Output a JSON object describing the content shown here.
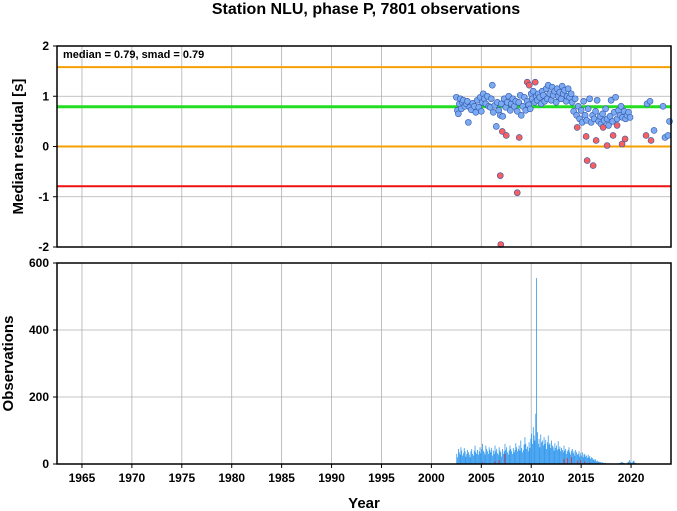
{
  "chart_data": [
    {
      "type": "scatter",
      "title": "Station NLU, phase P, 7801 observations",
      "xlabel": "",
      "ylabel": "Median residual [s]",
      "xlim": [
        1962.5,
        2024.0
      ],
      "ylim": [
        -2,
        2
      ],
      "yticks": [
        -2,
        -1,
        0,
        1,
        2
      ],
      "xticks": [
        1965,
        1970,
        1975,
        1980,
        1985,
        1990,
        1995,
        2000,
        2005,
        2010,
        2015,
        2020
      ],
      "grid": true,
      "annotation": "median = 0.79, smad = 0.79",
      "reference_lines": [
        {
          "value": 1.58,
          "color": "#f5a000",
          "width": 2
        },
        {
          "value": 0.79,
          "color": "#22dd22",
          "width": 3
        },
        {
          "value": 0.0,
          "color": "#f5a000",
          "width": 2
        },
        {
          "value": -0.79,
          "color": "#ee1111",
          "width": 2
        }
      ],
      "colors": {
        "normal": "#7aaaf2",
        "outlier": "#f86060"
      },
      "series": [
        {
          "key": "normal",
          "points": [
            [
              2002.5,
              0.98
            ],
            [
              2002.6,
              0.72
            ],
            [
              2002.7,
              0.65
            ],
            [
              2002.8,
              0.85
            ],
            [
              2002.9,
              0.95
            ],
            [
              2003.0,
              0.75
            ],
            [
              2003.1,
              0.88
            ],
            [
              2003.2,
              0.92
            ],
            [
              2003.35,
              0.8
            ],
            [
              2003.5,
              0.85
            ],
            [
              2003.6,
              0.9
            ],
            [
              2003.7,
              0.48
            ],
            [
              2003.85,
              0.78
            ],
            [
              2004.0,
              0.73
            ],
            [
              2004.15,
              0.86
            ],
            [
              2004.3,
              0.8
            ],
            [
              2004.45,
              0.68
            ],
            [
              2004.6,
              0.92
            ],
            [
              2004.75,
              0.78
            ],
            [
              2004.9,
              0.98
            ],
            [
              2005.0,
              0.7
            ],
            [
              2005.1,
              0.88
            ],
            [
              2005.2,
              1.05
            ],
            [
              2005.3,
              0.95
            ],
            [
              2005.45,
              0.85
            ],
            [
              2005.6,
              1.0
            ],
            [
              2005.75,
              0.8
            ],
            [
              2005.9,
              0.78
            ],
            [
              2006.0,
              0.95
            ],
            [
              2006.1,
              1.22
            ],
            [
              2006.2,
              0.68
            ],
            [
              2006.35,
              0.82
            ],
            [
              2006.5,
              0.4
            ],
            [
              2006.6,
              0.88
            ],
            [
              2006.75,
              0.72
            ],
            [
              2006.9,
              0.62
            ],
            [
              2007.0,
              0.85
            ],
            [
              2007.15,
              0.6
            ],
            [
              2007.3,
              0.95
            ],
            [
              2007.45,
              0.78
            ],
            [
              2007.6,
              0.88
            ],
            [
              2007.75,
              1.0
            ],
            [
              2007.9,
              0.72
            ],
            [
              2008.0,
              0.85
            ],
            [
              2008.15,
              0.95
            ],
            [
              2008.3,
              0.8
            ],
            [
              2008.45,
              0.9
            ],
            [
              2008.6,
              0.7
            ],
            [
              2008.75,
              0.88
            ],
            [
              2008.9,
              1.02
            ],
            [
              2009.0,
              0.62
            ],
            [
              2009.15,
              0.8
            ],
            [
              2009.3,
              0.98
            ],
            [
              2009.45,
              0.72
            ],
            [
              2009.6,
              0.9
            ],
            [
              2009.75,
              0.83
            ],
            [
              2009.9,
              0.75
            ],
            [
              2010.0,
              1.05
            ],
            [
              2010.1,
              0.95
            ],
            [
              2010.2,
              1.1
            ],
            [
              2010.35,
              0.88
            ],
            [
              2010.5,
              1.0
            ],
            [
              2010.6,
              0.92
            ],
            [
              2010.7,
              1.05
            ],
            [
              2010.85,
              0.98
            ],
            [
              2011.0,
              0.85
            ],
            [
              2011.1,
              1.1
            ],
            [
              2011.2,
              1.02
            ],
            [
              2011.35,
              0.9
            ],
            [
              2011.5,
              1.15
            ],
            [
              2011.6,
              0.95
            ],
            [
              2011.7,
              1.22
            ],
            [
              2011.85,
              1.05
            ],
            [
              2012.0,
              0.92
            ],
            [
              2012.1,
              1.18
            ],
            [
              2012.2,
              1.02
            ],
            [
              2012.35,
              1.1
            ],
            [
              2012.5,
              0.88
            ],
            [
              2012.6,
              1.15
            ],
            [
              2012.7,
              1.0
            ],
            [
              2012.85,
              1.08
            ],
            [
              2013.0,
              0.95
            ],
            [
              2013.1,
              1.2
            ],
            [
              2013.2,
              1.05
            ],
            [
              2013.35,
              1.12
            ],
            [
              2013.5,
              0.9
            ],
            [
              2013.6,
              1.0
            ],
            [
              2013.7,
              1.15
            ],
            [
              2013.85,
              0.98
            ],
            [
              2014.0,
              1.05
            ],
            [
              2014.1,
              0.88
            ],
            [
              2014.25,
              0.7
            ],
            [
              2014.4,
              0.95
            ],
            [
              2014.55,
              0.62
            ],
            [
              2014.7,
              0.8
            ],
            [
              2014.85,
              0.55
            ],
            [
              2015.0,
              0.72
            ],
            [
              2015.1,
              0.48
            ],
            [
              2015.25,
              0.9
            ],
            [
              2015.4,
              0.62
            ],
            [
              2015.55,
              0.52
            ],
            [
              2015.7,
              0.75
            ],
            [
              2015.85,
              0.95
            ],
            [
              2016.0,
              0.48
            ],
            [
              2016.15,
              0.62
            ],
            [
              2016.3,
              0.55
            ],
            [
              2016.45,
              0.7
            ],
            [
              2016.6,
              0.92
            ],
            [
              2016.75,
              0.5
            ],
            [
              2016.9,
              0.6
            ],
            [
              2017.0,
              0.45
            ],
            [
              2017.15,
              0.65
            ],
            [
              2017.3,
              0.52
            ],
            [
              2017.45,
              0.75
            ],
            [
              2017.6,
              0.55
            ],
            [
              2017.75,
              0.42
            ],
            [
              2017.9,
              0.6
            ],
            [
              2018.0,
              0.92
            ],
            [
              2018.15,
              0.5
            ],
            [
              2018.3,
              0.68
            ],
            [
              2018.45,
              0.98
            ],
            [
              2018.6,
              0.55
            ],
            [
              2018.75,
              0.72
            ],
            [
              2018.9,
              0.62
            ],
            [
              2019.0,
              0.8
            ],
            [
              2019.15,
              0.58
            ],
            [
              2019.3,
              0.7
            ],
            [
              2019.45,
              0.55
            ],
            [
              2019.6,
              0.62
            ],
            [
              2019.75,
              0.68
            ],
            [
              2019.9,
              0.58
            ],
            [
              2021.6,
              0.85
            ],
            [
              2021.9,
              0.9
            ],
            [
              2022.3,
              0.32
            ],
            [
              2023.2,
              0.8
            ],
            [
              2023.4,
              0.18
            ],
            [
              2023.7,
              0.22
            ],
            [
              2023.85,
              0.5
            ]
          ]
        },
        {
          "key": "outlier",
          "points": [
            [
              2006.9,
              -0.58
            ],
            [
              2006.95,
              -1.95
            ],
            [
              2007.1,
              0.3
            ],
            [
              2007.5,
              0.22
            ],
            [
              2008.6,
              -0.92
            ],
            [
              2008.8,
              0.18
            ],
            [
              2009.6,
              1.28
            ],
            [
              2009.8,
              1.22
            ],
            [
              2010.4,
              1.28
            ],
            [
              2014.6,
              0.38
            ],
            [
              2015.5,
              0.2
            ],
            [
              2015.6,
              -0.28
            ],
            [
              2016.2,
              -0.38
            ],
            [
              2016.5,
              0.12
            ],
            [
              2017.2,
              0.38
            ],
            [
              2017.6,
              0.02
            ],
            [
              2018.2,
              0.22
            ],
            [
              2018.6,
              0.42
            ],
            [
              2019.1,
              0.05
            ],
            [
              2019.4,
              0.15
            ],
            [
              2021.5,
              0.22
            ],
            [
              2022.0,
              0.12
            ]
          ]
        }
      ]
    },
    {
      "type": "bar",
      "xlabel": "Year",
      "ylabel": "Observations",
      "xlim": [
        1962.5,
        2024.0
      ],
      "ylim": [
        0,
        600
      ],
      "yticks": [
        0,
        200,
        400,
        600
      ],
      "xticks": [
        1965,
        1970,
        1975,
        1980,
        1985,
        1990,
        1995,
        2000,
        2005,
        2010,
        2015,
        2020
      ],
      "grid": true,
      "colors": {
        "total": "#3399ee",
        "outlier": "#dd2222"
      },
      "bin_width_years": 0.0833,
      "bins_start": 2002.5,
      "counts": [
        30,
        20,
        45,
        35,
        28,
        50,
        40,
        25,
        32,
        48,
        38,
        22,
        30,
        42,
        35,
        28,
        20,
        38,
        45,
        30,
        25,
        40,
        55,
        35,
        30,
        42,
        28,
        38,
        50,
        32,
        45,
        60,
        40,
        35,
        28,
        55,
        45,
        38,
        30,
        50,
        42,
        35,
        48,
        25,
        40,
        30,
        55,
        38,
        45,
        32,
        28,
        50,
        40,
        35,
        22,
        45,
        30,
        38,
        60,
        42,
        50,
        35,
        28,
        40,
        55,
        45,
        38,
        30,
        48,
        35,
        42,
        62,
        50,
        38,
        45,
        55,
        40,
        70,
        48,
        35,
        42,
        58,
        80,
        60,
        45,
        52,
        38,
        65,
        48,
        75,
        90,
        60,
        110,
        85,
        70,
        150,
        555,
        95,
        60,
        75,
        50,
        88,
        65,
        70,
        55,
        80,
        60,
        72,
        45,
        65,
        85,
        58,
        62,
        48,
        70,
        55,
        50,
        40,
        62,
        48,
        55,
        42,
        68,
        45,
        52,
        38,
        48,
        42,
        35,
        55,
        40,
        45,
        30,
        38,
        42,
        50,
        35,
        28,
        40,
        45,
        32,
        38,
        25,
        42,
        35,
        28,
        30,
        38,
        22,
        32,
        25,
        35,
        20,
        28,
        30,
        22,
        25,
        18,
        28,
        20,
        24,
        15,
        20,
        18,
        12,
        15,
        10,
        14,
        8,
        10,
        6,
        8,
        5,
        6,
        4,
        5,
        3,
        4,
        2,
        3,
        2,
        1,
        2,
        1,
        2,
        1,
        2,
        1,
        1,
        1,
        1,
        1,
        1,
        2,
        1,
        2,
        3,
        4,
        6,
        5,
        4,
        3,
        2,
        1,
        2,
        4,
        5,
        8,
        12,
        6,
        3,
        4,
        8,
        10,
        5,
        3,
        2,
        1
      ],
      "outlier_counts": [
        0,
        0,
        0,
        0,
        0,
        0,
        0,
        0,
        0,
        0,
        0,
        0,
        0,
        0,
        0,
        0,
        0,
        0,
        0,
        0,
        0,
        0,
        0,
        0,
        0,
        0,
        0,
        0,
        0,
        0,
        0,
        5,
        0,
        0,
        0,
        0,
        0,
        0,
        0,
        0,
        0,
        0,
        0,
        0,
        0,
        0,
        8,
        0,
        0,
        0,
        0,
        12,
        0,
        0,
        0,
        0,
        0,
        0,
        30,
        0,
        0,
        0,
        0,
        0,
        0,
        0,
        0,
        0,
        0,
        0,
        0,
        0,
        0,
        0,
        0,
        0,
        0,
        0,
        0,
        0,
        0,
        0,
        0,
        0,
        0,
        0,
        0,
        0,
        0,
        0,
        0,
        0,
        0,
        0,
        0,
        0,
        0,
        0,
        0,
        0,
        0,
        0,
        0,
        0,
        0,
        0,
        0,
        0,
        0,
        0,
        0,
        0,
        0,
        0,
        0,
        0,
        0,
        0,
        0,
        0,
        0,
        0,
        0,
        0,
        0,
        0,
        0,
        0,
        0,
        15,
        0,
        0,
        0,
        18,
        0,
        0,
        0,
        0,
        20,
        0,
        0,
        0,
        0,
        0,
        0,
        10,
        0,
        0,
        0,
        12,
        0,
        0,
        0,
        0,
        8,
        0,
        0,
        0,
        0,
        0,
        5,
        0,
        0,
        0,
        0,
        0,
        0,
        0,
        0,
        0,
        0,
        0,
        0,
        0,
        0,
        0,
        0,
        0,
        0,
        0,
        0,
        0,
        0,
        0,
        0,
        0,
        0,
        0,
        0,
        0,
        0,
        0,
        0,
        0,
        0,
        0,
        0,
        0,
        0,
        0,
        0,
        0,
        0,
        0,
        0,
        0,
        0,
        0,
        0,
        0,
        0,
        0,
        0,
        0,
        0,
        0,
        0,
        0,
        0,
        0,
        0,
        0,
        0,
        0
      ]
    }
  ]
}
